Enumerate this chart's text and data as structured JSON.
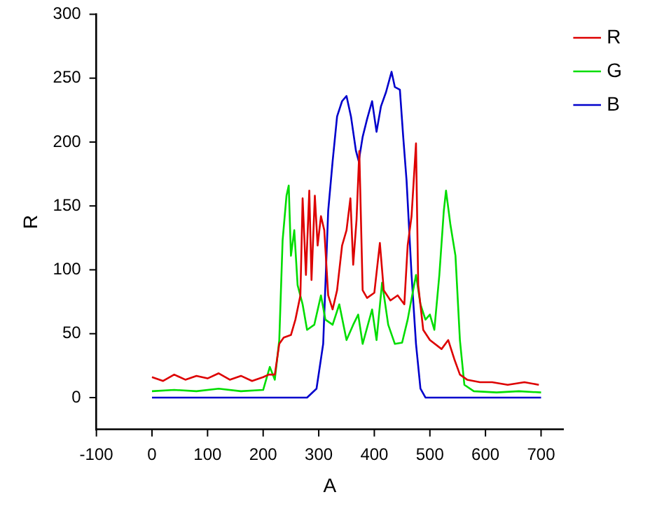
{
  "chart_data": {
    "type": "line",
    "xlabel": "A",
    "ylabel": "R",
    "xlim": [
      -100,
      740
    ],
    "ylim": [
      -25,
      300
    ],
    "xticks": [
      -100,
      0,
      100,
      200,
      300,
      400,
      500,
      600,
      700
    ],
    "yticks": [
      0,
      50,
      100,
      150,
      200,
      250,
      300
    ],
    "grid": false,
    "legend": "top right",
    "marker": "none",
    "line_style": "solid",
    "series": [
      {
        "name": "R",
        "color": "#dd0000",
        "x": [
          0,
          20,
          40,
          60,
          80,
          100,
          120,
          140,
          160,
          180,
          200,
          210,
          221,
          229,
          237,
          250,
          258,
          267,
          271,
          277,
          283,
          287,
          293,
          298,
          304,
          310,
          317,
          325,
          333,
          342,
          350,
          357,
          362,
          368,
          373,
          379,
          387,
          400,
          410,
          417,
          429,
          442,
          454,
          460,
          467,
          475,
          479,
          488,
          500,
          521,
          533,
          544,
          554,
          567,
          590,
          612,
          640,
          670,
          696
        ],
        "values": [
          16,
          13,
          18,
          14,
          17,
          15,
          19,
          14,
          17,
          13,
          16,
          18,
          18,
          42,
          47,
          49,
          61,
          80,
          156,
          96,
          162,
          92,
          158,
          119,
          142,
          131,
          80,
          69,
          84,
          119,
          131,
          156,
          104,
          139,
          193,
          84,
          78,
          82,
          121,
          84,
          76,
          80,
          73,
          119,
          142,
          199,
          88,
          53,
          45,
          38,
          45,
          30,
          18,
          14,
          12,
          12,
          10,
          12,
          10
        ]
      },
      {
        "name": "G",
        "color": "#00dd00",
        "x": [
          0,
          40,
          80,
          120,
          160,
          200,
          212,
          221,
          229,
          235,
          242,
          246,
          250,
          256,
          262,
          271,
          279,
          292,
          304,
          312,
          325,
          337,
          350,
          362,
          371,
          379,
          396,
          404,
          414,
          425,
          437,
          450,
          460,
          475,
          483,
          492,
          500,
          508,
          517,
          525,
          529,
          537,
          546,
          554,
          562,
          579,
          620,
          660,
          700
        ],
        "values": [
          5,
          6,
          5,
          7,
          5,
          6,
          24,
          14,
          45,
          123,
          158,
          166,
          111,
          131,
          88,
          73,
          53,
          57,
          80,
          61,
          57,
          73,
          45,
          57,
          65,
          42,
          69,
          45,
          90,
          57,
          42,
          43,
          61,
          96,
          73,
          61,
          65,
          53,
          96,
          146,
          162,
          135,
          111,
          45,
          10,
          5,
          4,
          5,
          4
        ]
      },
      {
        "name": "B",
        "color": "#0000cc",
        "x": [
          0,
          100,
          200,
          279,
          296,
          308,
          317,
          325,
          333,
          342,
          350,
          358,
          367,
          372,
          379,
          387,
          396,
          404,
          412,
          421,
          431,
          437,
          446,
          452,
          458,
          467,
          475,
          483,
          492,
          600,
          700
        ],
        "values": [
          0,
          0,
          0,
          0,
          7,
          42,
          146,
          185,
          220,
          232,
          236,
          220,
          193,
          185,
          204,
          218,
          232,
          208,
          228,
          239,
          255,
          243,
          241,
          204,
          170,
          96,
          42,
          7,
          0,
          0,
          0
        ]
      }
    ]
  }
}
